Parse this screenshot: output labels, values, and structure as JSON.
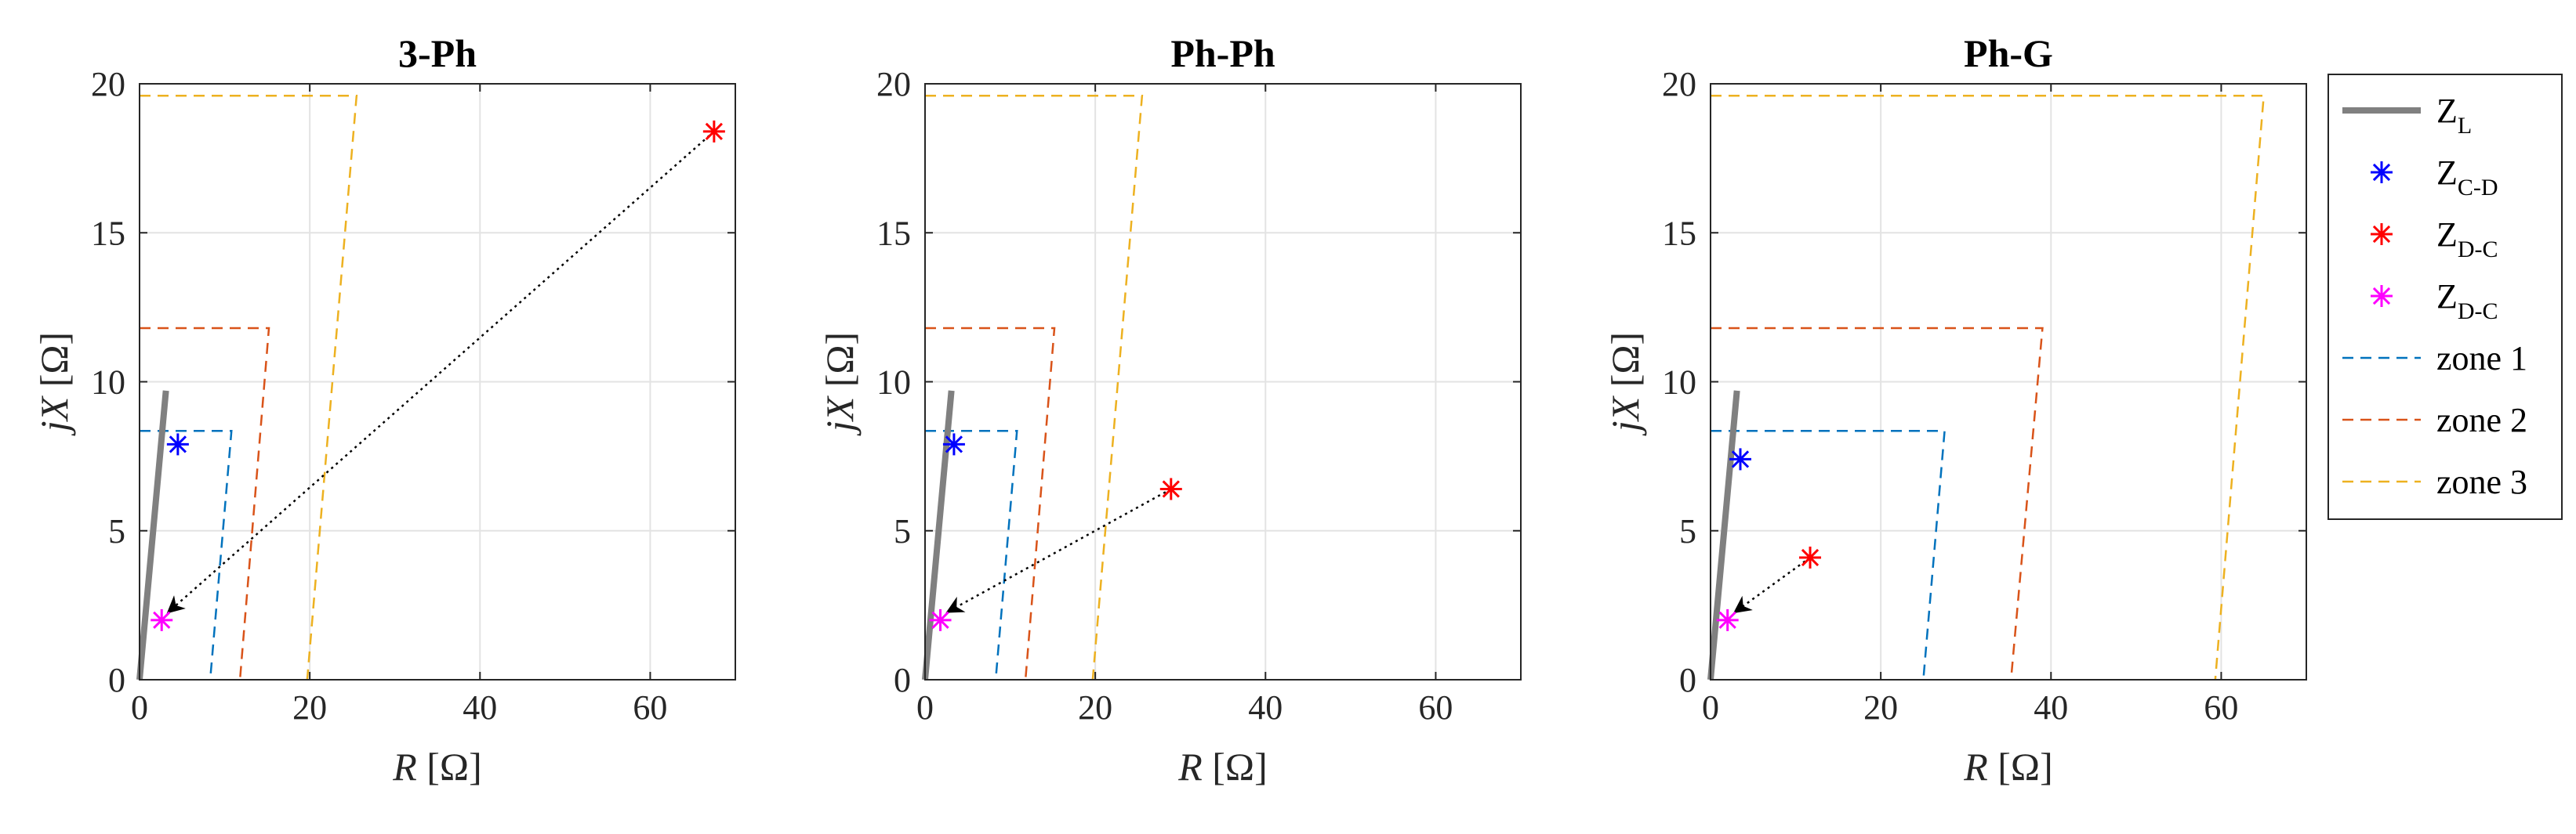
{
  "chart_data": [
    {
      "type": "scatter",
      "title": "3-Ph",
      "xlabel": "R [Ω]",
      "ylabel": "jX [Ω]",
      "xlim": [
        0,
        70
      ],
      "ylim": [
        0,
        20
      ],
      "xticks": [
        "0",
        "20",
        "40",
        "60"
      ],
      "yticks": [
        "0",
        "5",
        "10",
        "15",
        "20"
      ],
      "grid": true,
      "line_ZL": {
        "x": [
          0,
          3.1
        ],
        "y": [
          0,
          9.7
        ]
      },
      "zones": [
        {
          "name": "zone 1",
          "top": 8.35,
          "x_bottom": 8.3,
          "x_top": 10.8
        },
        {
          "name": "zone 2",
          "top": 11.8,
          "x_bottom": 11.8,
          "x_top": 15.2
        },
        {
          "name": "zone 3",
          "top": 19.6,
          "x_bottom": 19.7,
          "x_top": 25.5
        }
      ],
      "markers": [
        {
          "series": "Z_C-D",
          "x": 4.5,
          "y": 7.9,
          "color": "#0000ff"
        },
        {
          "series": "Z_D-C",
          "x": 67.5,
          "y": 18.4,
          "color": "#ff0000"
        },
        {
          "series": "Z_D-C (2)",
          "x": 2.6,
          "y": 2.0,
          "color": "#ff00ff"
        }
      ],
      "arrow": {
        "from": [
          67.5,
          18.4
        ],
        "to": [
          3.5,
          2.3
        ]
      }
    },
    {
      "type": "scatter",
      "title": "Ph-Ph",
      "xlabel": "R [Ω]",
      "ylabel": "jX [Ω]",
      "xlim": [
        0,
        70
      ],
      "ylim": [
        0,
        20
      ],
      "xticks": [
        "0",
        "20",
        "40",
        "60"
      ],
      "yticks": [
        "0",
        "5",
        "10",
        "15",
        "20"
      ],
      "grid": true,
      "line_ZL": {
        "x": [
          0,
          3.1
        ],
        "y": [
          0,
          9.7
        ]
      },
      "zones": [
        {
          "name": "zone 1",
          "top": 8.35,
          "x_bottom": 8.3,
          "x_top": 10.8
        },
        {
          "name": "zone 2",
          "top": 11.8,
          "x_bottom": 11.8,
          "x_top": 15.2
        },
        {
          "name": "zone 3",
          "top": 19.6,
          "x_bottom": 19.7,
          "x_top": 25.5
        }
      ],
      "markers": [
        {
          "series": "Z_C-D",
          "x": 3.4,
          "y": 7.9,
          "color": "#0000ff"
        },
        {
          "series": "Z_D-C",
          "x": 28.9,
          "y": 6.4,
          "color": "#ff0000"
        },
        {
          "series": "Z_D-C (2)",
          "x": 1.8,
          "y": 2.0,
          "color": "#ff00ff"
        }
      ],
      "arrow": {
        "from": [
          28.9,
          6.4
        ],
        "to": [
          2.8,
          2.3
        ]
      }
    },
    {
      "type": "scatter",
      "title": "Ph-G",
      "xlabel": "R [Ω]",
      "ylabel": "jX [Ω]",
      "xlim": [
        0,
        70
      ],
      "ylim": [
        0,
        20
      ],
      "xticks": [
        "0",
        "20",
        "40",
        "60"
      ],
      "yticks": [
        "0",
        "5",
        "10",
        "15",
        "20"
      ],
      "grid": true,
      "line_ZL": {
        "x": [
          0,
          3.1
        ],
        "y": [
          0,
          9.7
        ]
      },
      "zones": [
        {
          "name": "zone 1",
          "top": 8.35,
          "x_bottom": 25.0,
          "x_top": 27.5
        },
        {
          "name": "zone 2",
          "top": 11.8,
          "x_bottom": 35.3,
          "x_top": 39.0
        },
        {
          "name": "zone 3",
          "top": 19.6,
          "x_bottom": 59.3,
          "x_top": 65.0
        }
      ],
      "markers": [
        {
          "series": "Z_C-D",
          "x": 3.5,
          "y": 7.4,
          "color": "#0000ff"
        },
        {
          "series": "Z_D-C",
          "x": 11.7,
          "y": 4.1,
          "color": "#ff0000"
        },
        {
          "series": "Z_D-C (2)",
          "x": 2.0,
          "y": 2.0,
          "color": "#ff00ff"
        }
      ],
      "arrow": {
        "from": [
          11.7,
          4.1
        ],
        "to": [
          3.0,
          2.3
        ]
      }
    }
  ],
  "legend": {
    "location": "right",
    "entries": [
      {
        "main": "Z",
        "sub": "L",
        "style": "solid-line",
        "color": "#808080"
      },
      {
        "main": "Z",
        "sub": "C-D",
        "style": "asterisk",
        "color": "#0000ff"
      },
      {
        "main": "Z",
        "sub": "D-C",
        "style": "asterisk",
        "color": "#ff0000"
      },
      {
        "main": "Z",
        "sub": "D-C",
        "style": "asterisk",
        "color": "#ff00ff"
      },
      {
        "main": "zone 1",
        "sub": "",
        "style": "dashed-line",
        "color": "#0072bd"
      },
      {
        "main": "zone 2",
        "sub": "",
        "style": "dashed-line",
        "color": "#d95319"
      },
      {
        "main": "zone 3",
        "sub": "",
        "style": "dashed-line",
        "color": "#edb120"
      }
    ]
  },
  "colors": {
    "zone1": "#0072bd",
    "zone2": "#d95319",
    "zone3": "#edb120",
    "line": "#808080",
    "grid": "#e3e3e3",
    "axis": "#262626"
  }
}
